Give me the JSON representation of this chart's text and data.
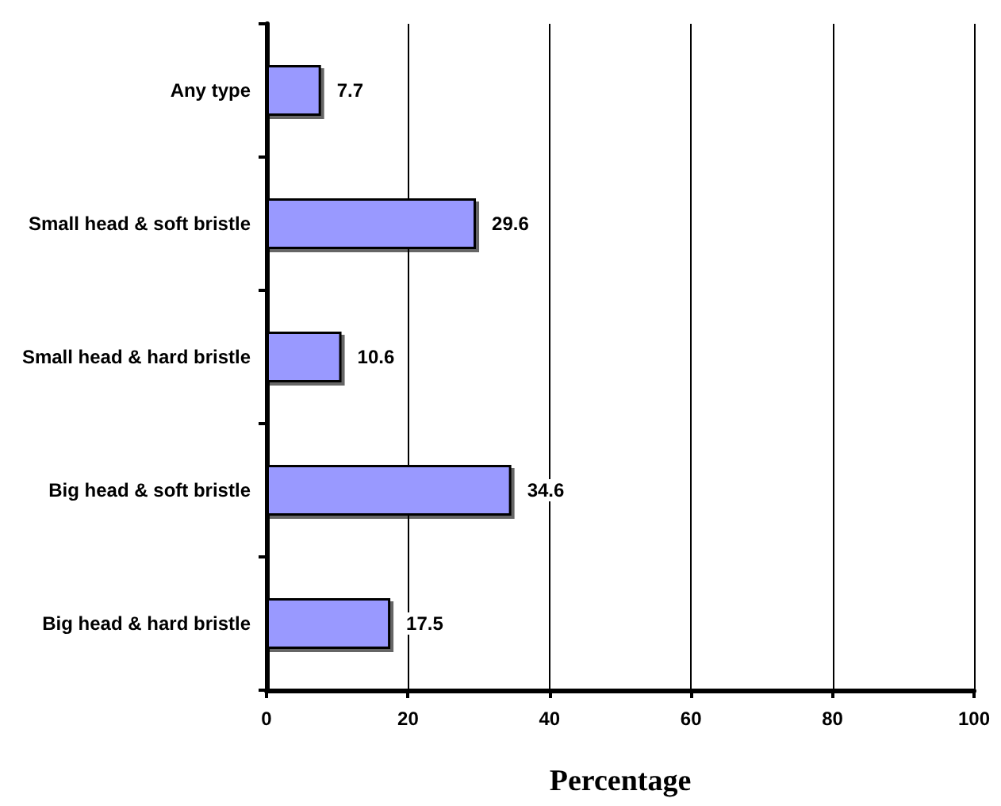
{
  "chart_data": {
    "type": "bar",
    "orientation": "horizontal",
    "xlabel": "Percentage",
    "categories": [
      "Any type",
      "Small head & soft bristle",
      "Small head & hard bristle",
      "Big head & soft bristle",
      "Big head & hard bristle"
    ],
    "values": [
      7.7,
      29.6,
      10.6,
      34.6,
      17.5
    ],
    "color": "#9999ff",
    "xlim": [
      0,
      100
    ],
    "xticks": [
      0,
      20,
      40,
      60,
      80,
      100
    ],
    "grid": "x",
    "data_labels": true
  }
}
